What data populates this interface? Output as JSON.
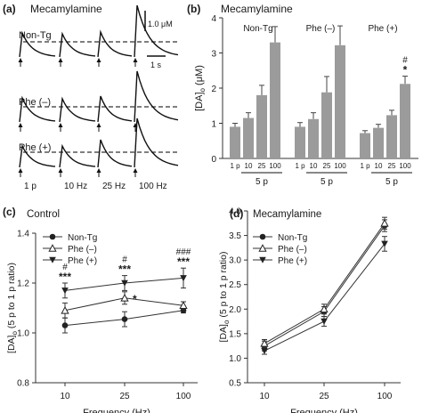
{
  "panels": {
    "a": {
      "letter": "(a)",
      "title": "Mecamylamine"
    },
    "b": {
      "letter": "(b)",
      "title": "Mecamylamine"
    },
    "c": {
      "letter": "(c)",
      "title": "Control"
    },
    "d": {
      "letter": "(d)",
      "title": "Mecamylamine"
    }
  },
  "traces": {
    "rows": [
      "Non-Tg",
      "Phe (–)",
      "Phe (+)"
    ],
    "stim_labels": [
      "1 p",
      "10 Hz",
      "25 Hz",
      "100 Hz"
    ],
    "scale_y": "1.0 μM",
    "scale_x": "1 s"
  },
  "chart_data": [
    {
      "type": "bar",
      "panel": "b",
      "title": "Mecamylamine",
      "ylabel": "[DA]o (μM)",
      "ylabel_main": "[DA]",
      "ylabel_sub": "o",
      "ylabel_unit": " (μM)",
      "ylim": [
        0,
        4
      ],
      "yticks": [
        "0",
        "1",
        "2",
        "3",
        "4"
      ],
      "groups": [
        {
          "name": "Non-Tg",
          "categories": [
            "1 p",
            "10",
            "25",
            "100"
          ],
          "values": [
            0.9,
            1.15,
            1.8,
            3.3
          ],
          "errors": [
            0.1,
            0.15,
            0.28,
            0.45
          ]
        },
        {
          "name": "Phe (–)",
          "categories": [
            "1 p",
            "10",
            "25",
            "100"
          ],
          "values": [
            0.9,
            1.12,
            1.88,
            3.22
          ],
          "errors": [
            0.12,
            0.18,
            0.45,
            0.55
          ]
        },
        {
          "name": "Phe (+)",
          "categories": [
            "1 p",
            "10",
            "25",
            "100"
          ],
          "values": [
            0.72,
            0.87,
            1.23,
            2.12
          ],
          "errors": [
            0.07,
            0.1,
            0.14,
            0.22
          ]
        }
      ],
      "group_sublabel": "5 p",
      "annotations": [
        {
          "text": "#"
        },
        {
          "text": "*"
        }
      ],
      "bar_color": "#9b9b9b"
    },
    {
      "type": "line",
      "panel": "c",
      "title": "Control",
      "xlabel": "Frequency (Hz)",
      "ylabel": "[DA]o (5 p to 1 p ratio)",
      "ylabel_main": "[DA]",
      "ylabel_sub": "o",
      "ylabel_unit": " (5 p to 1 p ratio)",
      "x": [
        "10",
        "25",
        "100"
      ],
      "ylim": [
        0.8,
        1.4
      ],
      "yticks": [
        "0.8",
        "1.0",
        "1.2",
        "1.4"
      ],
      "series": [
        {
          "name": "Non-Tg",
          "marker": "circle",
          "values": [
            1.03,
            1.055,
            1.09
          ],
          "errors": [
            0.03,
            0.03,
            0.01
          ]
        },
        {
          "name": "Phe (–)",
          "marker": "triangle-open",
          "values": [
            1.09,
            1.14,
            1.11
          ],
          "errors": [
            0.03,
            0.025,
            0.015
          ]
        },
        {
          "name": "Phe (+)",
          "marker": "triangle-down",
          "values": [
            1.17,
            1.2,
            1.22
          ],
          "errors": [
            0.03,
            0.03,
            0.04
          ]
        }
      ],
      "annotations": [
        {
          "x": "10",
          "lines": [
            "#",
            "***"
          ]
        },
        {
          "x": "25",
          "lines": [
            "#",
            "***"
          ]
        },
        {
          "x": "25",
          "lines": [
            "*"
          ]
        },
        {
          "x": "100",
          "lines": [
            "###",
            "***"
          ]
        }
      ],
      "legend": "top-left"
    },
    {
      "type": "line",
      "panel": "d",
      "title": "Mecamylamine",
      "xlabel": "Frequency (Hz)",
      "ylabel": "[DA]o (5 p to 1 p ratio)",
      "ylabel_main": "[DA]",
      "ylabel_sub": "o",
      "ylabel_unit": " (5 p to 1 p ratio)",
      "x": [
        "10",
        "25",
        "100"
      ],
      "ylim": [
        0.5,
        4.0
      ],
      "yticks": [
        "0.5",
        "1.0",
        "1.5",
        "2.0",
        "2.5",
        "3.0",
        "3.5",
        "4.0"
      ],
      "series": [
        {
          "name": "Non-Tg",
          "marker": "circle",
          "values": [
            1.25,
            1.95,
            3.7
          ],
          "errors": [
            0.1,
            0.1,
            0.12
          ]
        },
        {
          "name": "Phe (–)",
          "marker": "triangle-open",
          "values": [
            1.3,
            2.0,
            3.75
          ],
          "errors": [
            0.08,
            0.1,
            0.12
          ]
        },
        {
          "name": "Phe (+)",
          "marker": "triangle-down",
          "values": [
            1.15,
            1.75,
            3.33
          ],
          "errors": [
            0.07,
            0.1,
            0.15
          ]
        }
      ],
      "legend": "top-left"
    }
  ]
}
